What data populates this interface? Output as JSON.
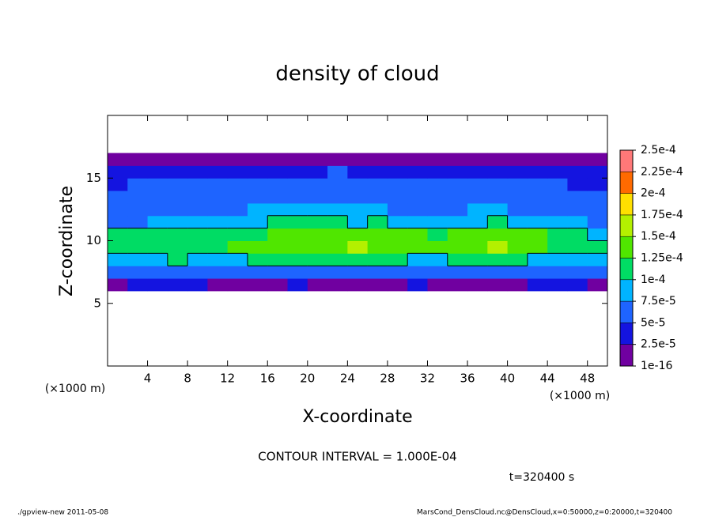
{
  "chart_data": {
    "type": "heatmap",
    "title": "density of cloud",
    "xlabel": "X-coordinate",
    "ylabel": "Z-coordinate",
    "x_unit": "(×1000 m)",
    "xlim": [
      0,
      50
    ],
    "ylim": [
      0,
      20
    ],
    "xticks": [
      4,
      8,
      12,
      16,
      20,
      24,
      28,
      32,
      36,
      40,
      44,
      48
    ],
    "yticks": [
      5,
      10,
      15
    ],
    "x_edges": [
      0,
      2,
      4,
      6,
      8,
      10,
      12,
      14,
      16,
      18,
      20,
      22,
      24,
      26,
      28,
      30,
      32,
      34,
      36,
      38,
      40,
      42,
      44,
      46,
      48,
      50
    ],
    "y_edges": [
      6,
      7,
      8,
      9,
      10,
      11,
      12,
      13,
      14,
      15,
      16,
      17
    ],
    "values": [
      [
        2.2e-05,
        2.5e-05,
        2.8e-05,
        3e-05,
        2.6e-05,
        2.4e-05,
        2e-05,
        1.8e-05,
        2.2e-05,
        2.6e-05,
        2e-05,
        1.6e-05,
        1.5e-05,
        1.8e-05,
        2.4e-05,
        2.8e-05,
        2.2e-05,
        1.6e-05,
        1.5e-05,
        1.7e-05,
        2.3e-05,
        2.7e-05,
        3e-05,
        2.6e-05,
        2.4e-05
      ],
      [
        5.5e-05,
        6e-05,
        6.5e-05,
        7e-05,
        6.2e-05,
        5.8e-05,
        6.6e-05,
        7.2e-05,
        6.8e-05,
        6.4e-05,
        7e-05,
        6.5e-05,
        6.2e-05,
        6.8e-05,
        7.4e-05,
        7e-05,
        6.6e-05,
        6.3e-05,
        6.5e-05,
        6.9e-05,
        7.1e-05,
        6.7e-05,
        6.2e-05,
        5.9e-05,
        5.6e-05
      ],
      [
        8.5e-05,
        9.2e-05,
        9.6e-05,
        0.000102,
        9.8e-05,
        9.4e-05,
        9.9e-05,
        0.000105,
        0.000103,
        0.0001,
        0.000108,
        0.00011,
        0.000106,
        0.000104,
        0.000102,
        9.9e-05,
        9.7e-05,
        0.000101,
        0.000107,
        0.000109,
        0.000103,
        9.8e-05,
        9.5e-05,
        9.1e-05,
        8.7e-05
      ],
      [
        0.000105,
        0.000112,
        0.000118,
        0.000115,
        0.00012,
        0.000122,
        0.000125,
        0.000128,
        0.00013,
        0.000132,
        0.000138,
        0.000145,
        0.000152,
        0.000142,
        0.000135,
        0.00013,
        0.000128,
        0.000134,
        0.000142,
        0.00015,
        0.00014,
        0.00013,
        0.00012,
        0.000112,
        0.000104
      ],
      [
        0.0001,
        0.000105,
        0.00011,
        0.000112,
        0.000115,
        0.000118,
        0.00012,
        0.000124,
        0.000126,
        0.000128,
        0.000135,
        0.000142,
        0.000148,
        0.000138,
        0.00013,
        0.000126,
        0.000122,
        0.000128,
        0.000136,
        0.000144,
        0.000134,
        0.000125,
        0.000115,
        0.000106,
        9.8e-05
      ],
      [
        7e-05,
        7.4e-05,
        7.8e-05,
        8.2e-05,
        8.5e-05,
        8.8e-05,
        9.2e-05,
        9.6e-05,
        0.000101,
        0.000103,
        0.000105,
        0.000102,
        9.8e-05,
        0.000101,
        9.6e-05,
        9.2e-05,
        9e-05,
        9.3e-05,
        9.7e-05,
        0.000102,
        9.4e-05,
        8.8e-05,
        8.2e-05,
        7.6e-05,
        7.2e-05
      ],
      [
        5.8e-05,
        6.1e-05,
        6.4e-05,
        6.6e-05,
        6.8e-05,
        7.1e-05,
        7.3e-05,
        7.6e-05,
        7.8e-05,
        7.7e-05,
        7.9e-05,
        8e-05,
        7.6e-05,
        7.8e-05,
        7.4e-05,
        7.2e-05,
        7e-05,
        7.3e-05,
        7.5e-05,
        7.7e-05,
        7.2e-05,
        6.8e-05,
        6.4e-05,
        6e-05,
        5.7e-05
      ],
      [
        5.4e-05,
        5.6e-05,
        5.8e-05,
        6e-05,
        6.2e-05,
        6.4e-05,
        6.5e-05,
        6.7e-05,
        6.8e-05,
        6.6e-05,
        6.9e-05,
        7e-05,
        6.7e-05,
        6.8e-05,
        6.5e-05,
        6.3e-05,
        6.2e-05,
        6.4e-05,
        6.6e-05,
        6.5e-05,
        6.3e-05,
        6e-05,
        5.8e-05,
        5.5e-05,
        5.3e-05
      ],
      [
        4.8e-05,
        5e-05,
        5.2e-05,
        5.4e-05,
        5.5e-05,
        5.7e-05,
        5.8e-05,
        5.9e-05,
        6e-05,
        5.8e-05,
        6.1e-05,
        6.2e-05,
        5.9e-05,
        6e-05,
        5.8e-05,
        5.6e-05,
        5.5e-05,
        5.7e-05,
        5.8e-05,
        5.7e-05,
        5.5e-05,
        5.3e-05,
        5.1e-05,
        4.9e-05,
        4.7e-05
      ],
      [
        3.6e-05,
        3.8e-05,
        4e-05,
        4.2e-05,
        4.3e-05,
        4.5e-05,
        4.6e-05,
        4.7e-05,
        4.8e-05,
        4.6e-05,
        4.9e-05,
        5e-05,
        4.7e-05,
        4.8e-05,
        4.6e-05,
        4.4e-05,
        4.3e-05,
        4.5e-05,
        4.6e-05,
        4.5e-05,
        4.4e-05,
        4.2e-05,
        4e-05,
        3.8e-05,
        3.5e-05
      ],
      [
        1.5e-05,
        1.8e-05,
        2e-05,
        2.2e-05,
        2.1e-05,
        1.9e-05,
        2.3e-05,
        2.4e-05,
        2.2e-05,
        2e-05,
        1.8e-05,
        1.9e-05,
        2.1e-05,
        2.3e-05,
        2.2e-05,
        2e-05,
        2.4e-05,
        2.3e-05,
        2.1e-05,
        2e-05,
        2.2e-05,
        2.3e-05,
        2.1e-05,
        1.9e-05,
        1.6e-05
      ]
    ],
    "colorbar": {
      "ticks": [
        {
          "value": 1e-16,
          "label": "1e-16"
        },
        {
          "value": 2.5e-05,
          "label": "2.5e-5"
        },
        {
          "value": 5e-05,
          "label": "5e-5"
        },
        {
          "value": 7.5e-05,
          "label": "7.5e-5"
        },
        {
          "value": 0.0001,
          "label": "1e-4"
        },
        {
          "value": 0.000125,
          "label": "1.25e-4"
        },
        {
          "value": 0.00015,
          "label": "1.5e-4"
        },
        {
          "value": 0.000175,
          "label": "1.75e-4"
        },
        {
          "value": 0.0002,
          "label": "2e-4"
        },
        {
          "value": 0.000225,
          "label": "2.25e-4"
        },
        {
          "value": 0.00025,
          "label": "2.5e-4"
        }
      ],
      "colors": [
        "#7000a0",
        "#1414e0",
        "#1e64ff",
        "#00b4ff",
        "#00dc64",
        "#50e600",
        "#b4f000",
        "#ffe000",
        "#ff6a00",
        "#ff7878"
      ]
    },
    "contour_interval": 0.0001,
    "contour_label": "CONTOUR INTERVAL = 1.000E-04",
    "time_label": "t=320400 s",
    "footer_left": "./gpview-new  2011-05-08",
    "footer_right": "MarsCond_DensCloud.nc@DensCloud,x=0:50000,z=0:20000,t=320400"
  }
}
